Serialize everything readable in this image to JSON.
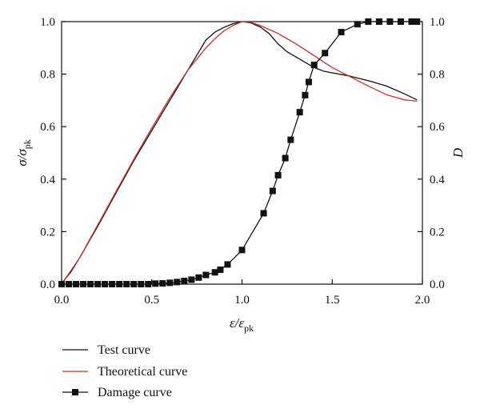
{
  "chart_data": {
    "type": "line",
    "xlabel": "ε/ε",
    "xlabel_sub": "pk",
    "ylabel_left": "σ/σ",
    "ylabel_left_sub": "pk",
    "ylabel_right": "D",
    "xlim": [
      0,
      2.0
    ],
    "ylim_left": [
      0,
      1.0
    ],
    "ylim_right": [
      0,
      1.0
    ],
    "x_ticks": [
      "0.0",
      "0.5",
      "1.0",
      "1.5",
      "2.0"
    ],
    "y_ticks_left": [
      "0.0",
      "0.2",
      "0.4",
      "0.6",
      "0.8",
      "1.0"
    ],
    "y_ticks_right": [
      "0.0",
      "0.2",
      "0.4",
      "0.6",
      "0.8",
      "1.0"
    ],
    "grid": false,
    "legend_position": "below",
    "series": [
      {
        "name": "Test curve",
        "color": "#111111",
        "marker": "none",
        "points": [
          [
            0,
            0
          ],
          [
            0.02,
            0.02
          ],
          [
            0.05,
            0.045
          ],
          [
            0.1,
            0.1
          ],
          [
            0.2,
            0.22
          ],
          [
            0.3,
            0.345
          ],
          [
            0.4,
            0.47
          ],
          [
            0.5,
            0.585
          ],
          [
            0.6,
            0.7
          ],
          [
            0.7,
            0.815
          ],
          [
            0.8,
            0.93
          ],
          [
            0.85,
            0.96
          ],
          [
            0.9,
            0.978
          ],
          [
            0.95,
            0.992
          ],
          [
            1.0,
            1.0
          ],
          [
            1.05,
            0.995
          ],
          [
            1.1,
            0.98
          ],
          [
            1.15,
            0.955
          ],
          [
            1.2,
            0.915
          ],
          [
            1.25,
            0.885
          ],
          [
            1.3,
            0.865
          ],
          [
            1.35,
            0.845
          ],
          [
            1.4,
            0.825
          ],
          [
            1.45,
            0.812
          ],
          [
            1.5,
            0.805
          ],
          [
            1.6,
            0.792
          ],
          [
            1.7,
            0.775
          ],
          [
            1.8,
            0.755
          ],
          [
            1.9,
            0.725
          ],
          [
            1.97,
            0.702
          ]
        ]
      },
      {
        "name": "Theoretical curve",
        "color": "#d42a1e",
        "marker": "none",
        "points": [
          [
            0,
            0
          ],
          [
            0.05,
            0.05
          ],
          [
            0.1,
            0.1
          ],
          [
            0.2,
            0.225
          ],
          [
            0.3,
            0.35
          ],
          [
            0.4,
            0.475
          ],
          [
            0.5,
            0.595
          ],
          [
            0.6,
            0.71
          ],
          [
            0.7,
            0.815
          ],
          [
            0.8,
            0.9
          ],
          [
            0.85,
            0.935
          ],
          [
            0.9,
            0.965
          ],
          [
            0.95,
            0.985
          ],
          [
            1.0,
            1.0
          ],
          [
            1.05,
            0.997
          ],
          [
            1.1,
            0.985
          ],
          [
            1.2,
            0.955
          ],
          [
            1.3,
            0.915
          ],
          [
            1.4,
            0.87
          ],
          [
            1.5,
            0.825
          ],
          [
            1.6,
            0.79
          ],
          [
            1.7,
            0.755
          ],
          [
            1.8,
            0.722
          ],
          [
            1.9,
            0.702
          ],
          [
            1.97,
            0.697
          ]
        ]
      },
      {
        "name": "Damage curve",
        "color": "#111111",
        "marker": "square",
        "points": [
          [
            0,
            0
          ],
          [
            0.04,
            0
          ],
          [
            0.08,
            0
          ],
          [
            0.12,
            0
          ],
          [
            0.16,
            0
          ],
          [
            0.2,
            0
          ],
          [
            0.24,
            0
          ],
          [
            0.28,
            0
          ],
          [
            0.32,
            0
          ],
          [
            0.36,
            0
          ],
          [
            0.4,
            0
          ],
          [
            0.44,
            0
          ],
          [
            0.48,
            0
          ],
          [
            0.52,
            0.002
          ],
          [
            0.56,
            0.003
          ],
          [
            0.6,
            0.005
          ],
          [
            0.64,
            0.008
          ],
          [
            0.68,
            0.012
          ],
          [
            0.72,
            0.017
          ],
          [
            0.76,
            0.025
          ],
          [
            0.8,
            0.035
          ],
          [
            0.85,
            0.045
          ],
          [
            0.88,
            0.055
          ],
          [
            0.92,
            0.075
          ],
          [
            1.0,
            0.13
          ],
          [
            1.12,
            0.27
          ],
          [
            1.17,
            0.355
          ],
          [
            1.2,
            0.415
          ],
          [
            1.24,
            0.48
          ],
          [
            1.27,
            0.55
          ],
          [
            1.32,
            0.655
          ],
          [
            1.35,
            0.72
          ],
          [
            1.37,
            0.77
          ],
          [
            1.4,
            0.835
          ],
          [
            1.46,
            0.88
          ],
          [
            1.55,
            0.96
          ],
          [
            1.64,
            0.99
          ],
          [
            1.7,
            1.0
          ],
          [
            1.76,
            1.0
          ],
          [
            1.82,
            1.0
          ],
          [
            1.88,
            1.0
          ],
          [
            1.94,
            1.0
          ],
          [
            1.97,
            1.0
          ]
        ]
      }
    ]
  }
}
